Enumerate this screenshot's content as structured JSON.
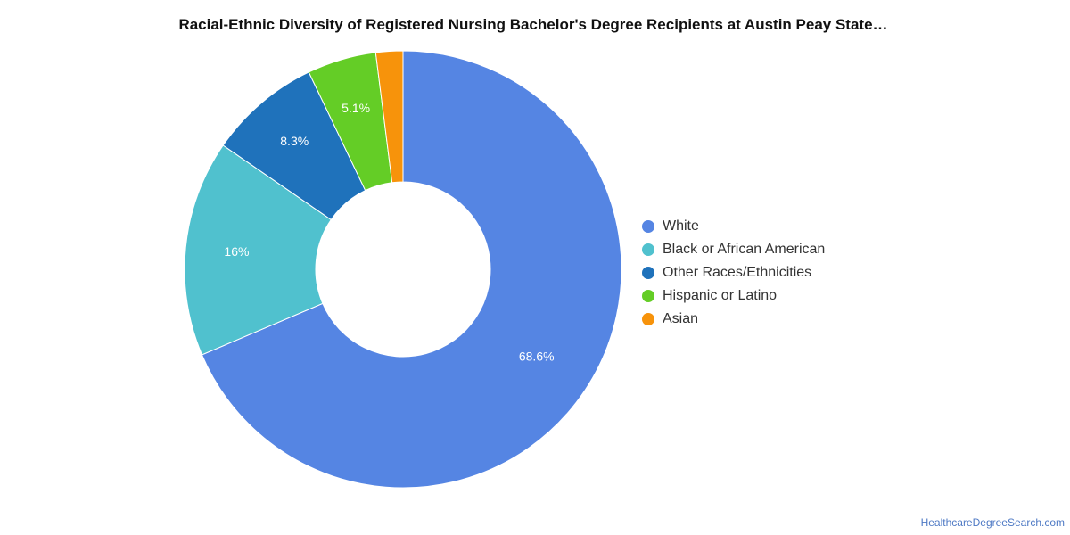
{
  "chart_data": {
    "type": "pie",
    "title": "Racial-Ethnic Diversity of Registered Nursing Bachelor's Degree Recipients at Austin Peay State…",
    "variant": "donut",
    "categories": [
      "White",
      "Black or African American",
      "Other Races/Ethnicities",
      "Hispanic or Latino",
      "Asian"
    ],
    "values": [
      68.6,
      16.0,
      8.3,
      5.1,
      2.0
    ],
    "labels": [
      "68.6%",
      "16%",
      "8.3%",
      "5.1%",
      ""
    ],
    "colors": [
      "#5585e3",
      "#50c1ce",
      "#1f72bb",
      "#64cd26",
      "#f7930b"
    ],
    "legend_position": "right"
  },
  "source": "HealthcareDegreeSearch.com"
}
